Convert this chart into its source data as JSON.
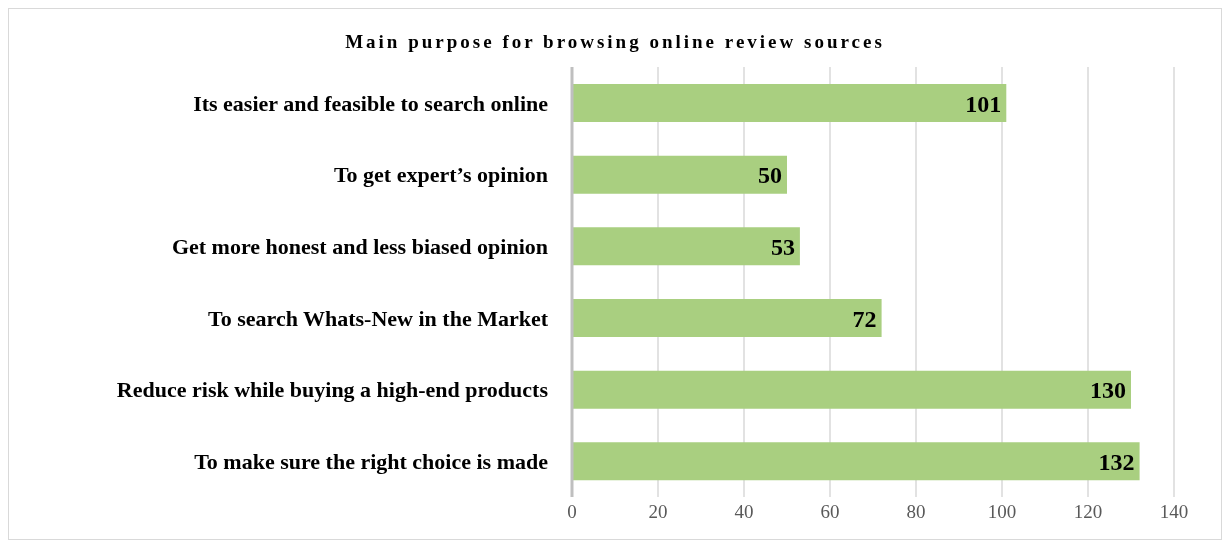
{
  "chart_data": {
    "type": "bar",
    "orientation": "horizontal",
    "title": "Main purpose for browsing online review sources",
    "categories": [
      "Its easier and feasible to search online",
      "To get expert’s opinion",
      "Get more honest and less biased opinion",
      "To search Whats-New in the Market",
      "Reduce risk while buying a high-end products ",
      "To make sure the right choice is made"
    ],
    "values": [
      101,
      50,
      53,
      72,
      130,
      132
    ],
    "color": "#a9cf80",
    "xlim": [
      0,
      140
    ],
    "xticks": [
      0,
      20,
      40,
      60,
      80,
      100,
      120,
      140
    ],
    "grid": "x",
    "data_labels": true
  }
}
